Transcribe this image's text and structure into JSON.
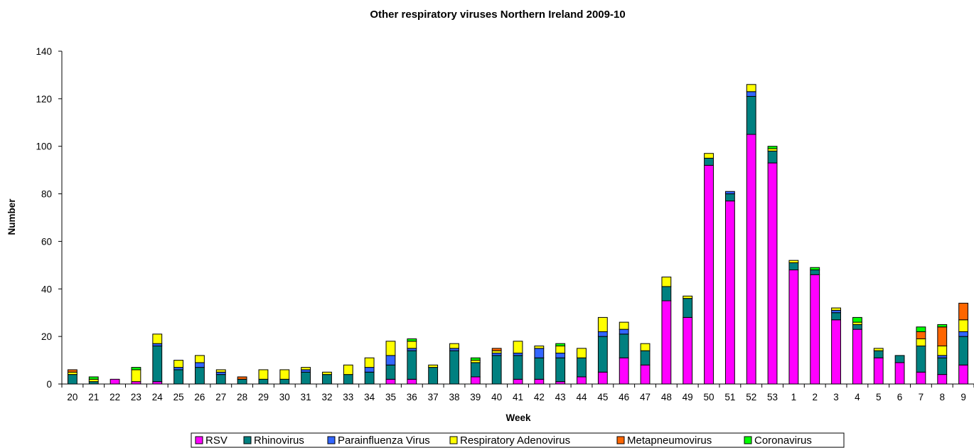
{
  "chart_data": {
    "type": "bar",
    "stacked": true,
    "title": "Other respiratory viruses Northern Ireland 2009-10",
    "xlabel": "Week",
    "ylabel": "Number",
    "ylim": [
      0,
      140
    ],
    "yticks": [
      0,
      20,
      40,
      60,
      80,
      100,
      120,
      140
    ],
    "grid": false,
    "legend_position": "bottom",
    "categories": [
      "20",
      "21",
      "22",
      "23",
      "24",
      "25",
      "26",
      "27",
      "28",
      "29",
      "30",
      "31",
      "32",
      "33",
      "34",
      "35",
      "36",
      "37",
      "38",
      "39",
      "40",
      "41",
      "42",
      "43",
      "44",
      "45",
      "46",
      "47",
      "48",
      "49",
      "50",
      "51",
      "52",
      "53",
      "1",
      "2",
      "3",
      "4",
      "5",
      "6",
      "7",
      "8",
      "9"
    ],
    "series": [
      {
        "name": "RSV",
        "color": "#ff00ff",
        "values": [
          0,
          0,
          2,
          1,
          1,
          0,
          0,
          0,
          0,
          0,
          0,
          0,
          0,
          0,
          0,
          2,
          2,
          0,
          0,
          3,
          0,
          2,
          2,
          1,
          3,
          5,
          11,
          8,
          35,
          28,
          92,
          77,
          105,
          93,
          48,
          46,
          27,
          23,
          11,
          9,
          5,
          4,
          8
        ]
      },
      {
        "name": "Rhinovirus",
        "color": "#008080",
        "values": [
          4,
          1,
          0,
          0,
          15,
          6,
          7,
          4,
          2,
          2,
          2,
          5,
          4,
          4,
          5,
          6,
          12,
          7,
          14,
          6,
          12,
          10,
          9,
          10,
          8,
          15,
          10,
          6,
          6,
          8,
          3,
          3,
          16,
          5,
          3,
          2,
          3,
          2,
          3,
          3,
          11,
          7,
          12
        ]
      },
      {
        "name": "Parainfluenza Virus",
        "color": "#3366ff",
        "values": [
          0,
          0,
          0,
          0,
          1,
          1,
          2,
          1,
          0,
          0,
          0,
          1,
          0,
          0,
          2,
          4,
          1,
          0,
          1,
          0,
          1,
          1,
          4,
          2,
          0,
          2,
          2,
          0,
          0,
          0,
          0,
          1,
          2,
          0,
          0,
          0,
          1,
          0,
          0,
          0,
          0,
          1,
          2
        ]
      },
      {
        "name": "Respiratory Adenovirus",
        "color": "#ffff00",
        "values": [
          1,
          1,
          0,
          5,
          4,
          3,
          3,
          1,
          0,
          4,
          4,
          1,
          1,
          4,
          4,
          6,
          3,
          1,
          2,
          1,
          1,
          5,
          1,
          3,
          4,
          6,
          3,
          3,
          4,
          1,
          2,
          0,
          3,
          1,
          1,
          0,
          1,
          1,
          1,
          0,
          3,
          4,
          5
        ]
      },
      {
        "name": "Metapneumovirus",
        "color": "#ff6600",
        "values": [
          1,
          0,
          0,
          0,
          0,
          0,
          0,
          0,
          1,
          0,
          0,
          0,
          0,
          0,
          0,
          0,
          0,
          0,
          0,
          0,
          1,
          0,
          0,
          0,
          0,
          0,
          0,
          0,
          0,
          0,
          0,
          0,
          0,
          0,
          0,
          0,
          0,
          0,
          0,
          0,
          3,
          8,
          7
        ]
      },
      {
        "name": "Coronavirus",
        "color": "#00ff00",
        "values": [
          0,
          1,
          0,
          1,
          0,
          0,
          0,
          0,
          0,
          0,
          0,
          0,
          0,
          0,
          0,
          0,
          1,
          0,
          0,
          1,
          0,
          0,
          0,
          1,
          0,
          0,
          0,
          0,
          0,
          0,
          0,
          0,
          0,
          1,
          0,
          1,
          0,
          2,
          0,
          0,
          2,
          1,
          0
        ]
      }
    ]
  }
}
